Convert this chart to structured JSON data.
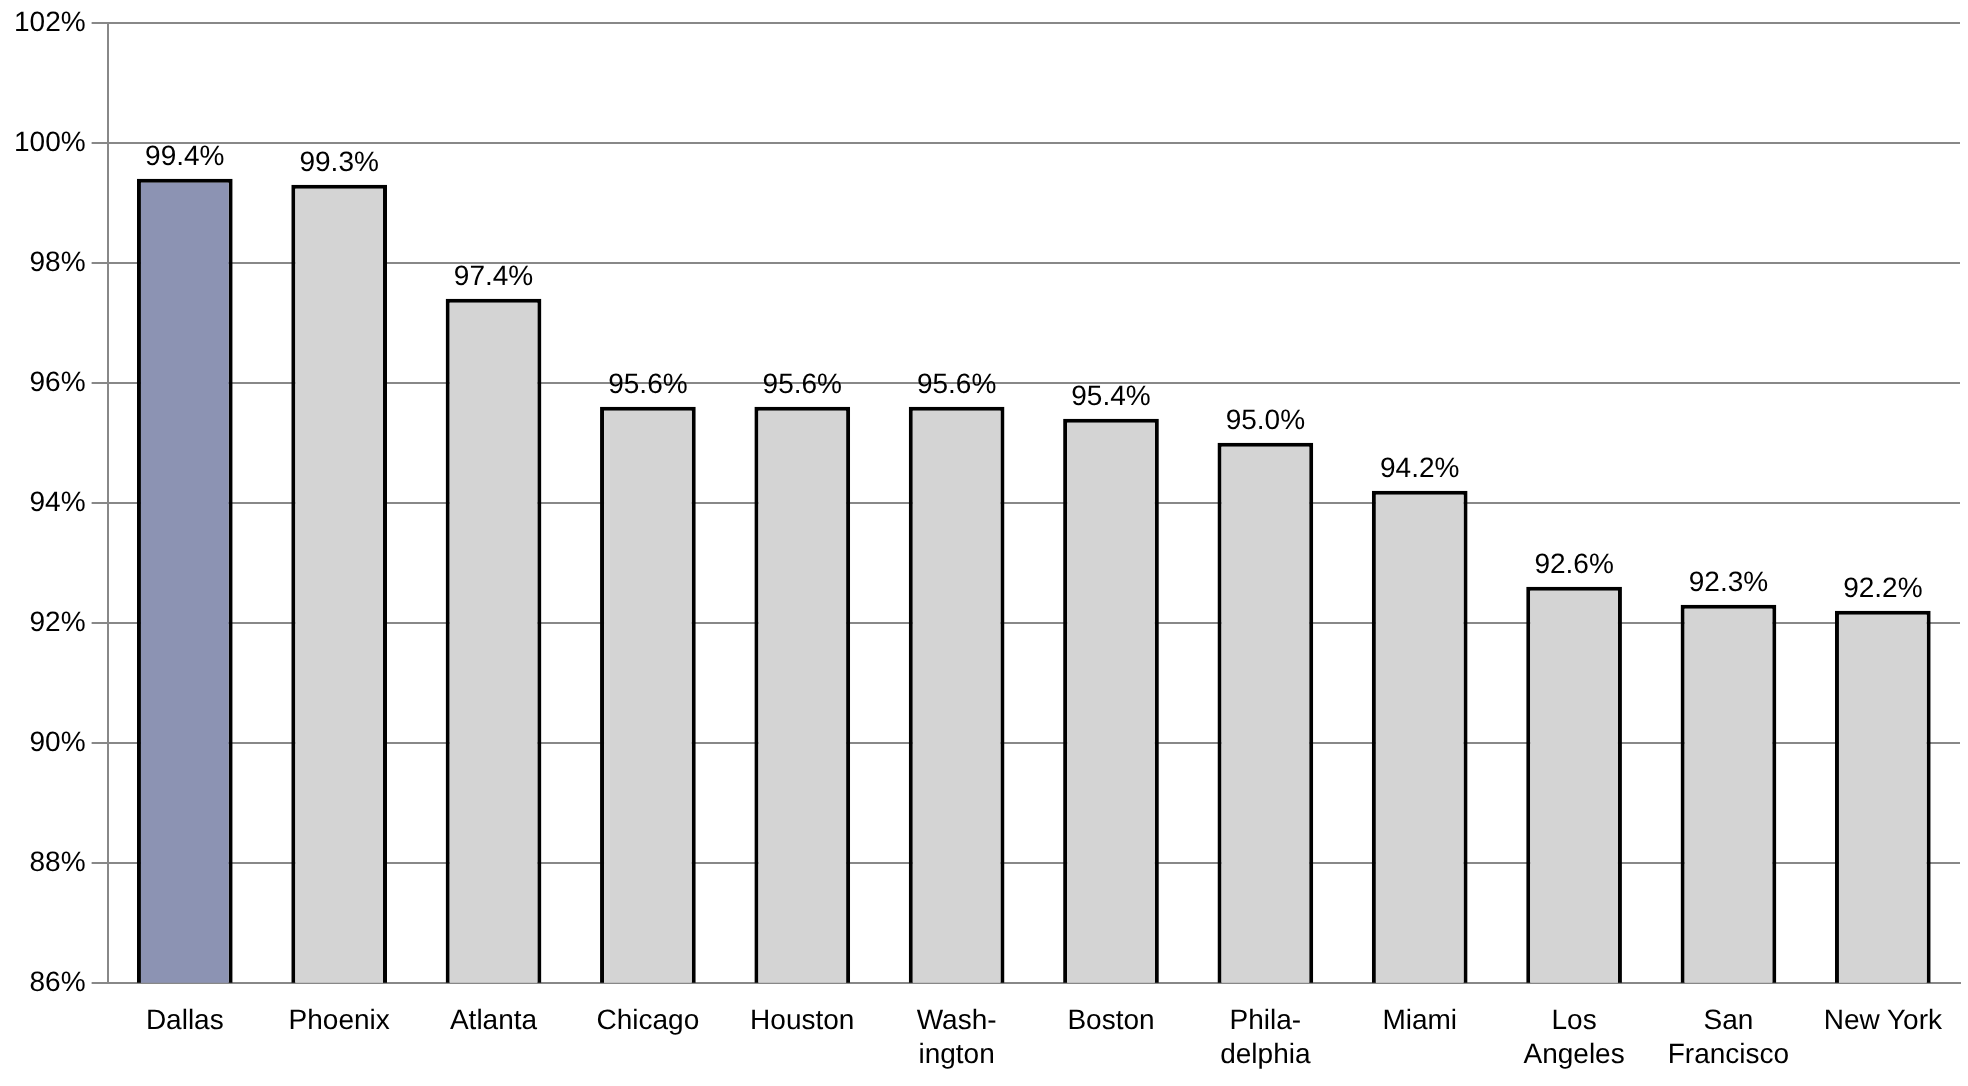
{
  "chart_data": {
    "type": "bar",
    "categories": [
      "Dallas",
      "Phoenix",
      "Atlanta",
      "Chicago",
      "Houston",
      "Wash-\nington",
      "Boston",
      "Phila-\ndelphia",
      "Miami",
      "Los\nAngeles",
      "San\nFrancisco",
      "New York"
    ],
    "values": [
      99.4,
      99.3,
      97.4,
      95.6,
      95.6,
      95.6,
      95.4,
      95.0,
      94.2,
      92.6,
      92.3,
      92.2
    ],
    "colors": [
      "#8c93b3",
      "#d4d4d4",
      "#d4d4d4",
      "#d4d4d4",
      "#d4d4d4",
      "#d4d4d4",
      "#d4d4d4",
      "#d4d4d4",
      "#d4d4d4",
      "#d4d4d4",
      "#d4d4d4",
      "#d4d4d4"
    ],
    "value_labels": [
      "99.4%",
      "99.3%",
      "97.4%",
      "95.6%",
      "95.6%",
      "95.6%",
      "95.4%",
      "95.0%",
      "94.2%",
      "92.6%",
      "92.3%",
      "92.2%"
    ],
    "ylim": [
      86,
      102
    ],
    "yticks": [
      {
        "value": 86,
        "label": "86%"
      },
      {
        "value": 88,
        "label": "88%"
      },
      {
        "value": 90,
        "label": "90%"
      },
      {
        "value": 92,
        "label": "92%"
      },
      {
        "value": 94,
        "label": "94%"
      },
      {
        "value": 96,
        "label": "96%"
      },
      {
        "value": 98,
        "label": "98%"
      },
      {
        "value": 100,
        "label": "100%"
      },
      {
        "value": 102,
        "label": "102%"
      }
    ],
    "grid": "y",
    "legend": false
  }
}
